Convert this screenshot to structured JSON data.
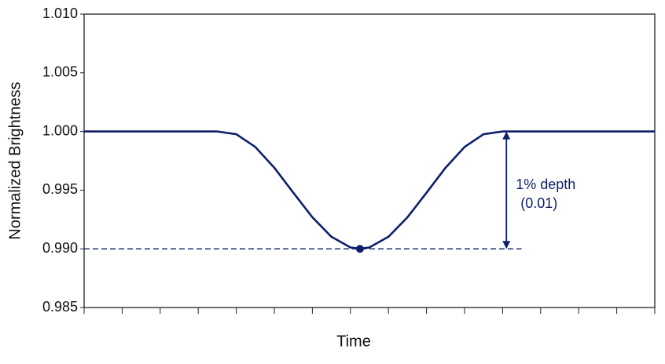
{
  "chart_data": {
    "type": "line",
    "x_label": "Time",
    "y_label": "Normalized Brightness",
    "x": [
      0,
      3.5,
      4,
      4.5,
      5,
      5.5,
      6,
      6.5,
      7,
      7.25,
      7.5,
      8,
      8.5,
      9,
      9.5,
      10,
      10.5,
      11,
      15
    ],
    "series": [
      {
        "color": "#0d1f6b",
        "values": [
          1.0,
          1.0,
          0.99977,
          0.99868,
          0.99691,
          0.99478,
          0.99269,
          0.99103,
          0.99012,
          0.99,
          0.99012,
          0.99103,
          0.99269,
          0.99478,
          0.99691,
          0.99868,
          0.99977,
          1.0,
          1.0
        ]
      }
    ],
    "xlim": [
      0,
      15
    ],
    "xticks": [
      0,
      1,
      2,
      3,
      4,
      5,
      6,
      7,
      8,
      9,
      10,
      11,
      12,
      13,
      14,
      15
    ],
    "ylim": [
      0.985,
      1.01
    ],
    "yticks": [
      {
        "value": 0.985,
        "label": "0.985"
      },
      {
        "value": 0.99,
        "label": "0.990"
      },
      0.995,
      {
        "value": 1.0,
        "label": "1.000"
      },
      1.005,
      {
        "value": 1.01,
        "label": "1.010"
      }
    ],
    "marker": {
      "x": 7.25,
      "y": 0.99
    },
    "reference_line": {
      "y": 0.99,
      "x_end": 11.5
    },
    "depth_arrow": {
      "x": 11.1,
      "y_from": 1.0,
      "y_to": 0.99
    },
    "annotation": [
      "1% depth",
      "(0.01)"
    ]
  }
}
